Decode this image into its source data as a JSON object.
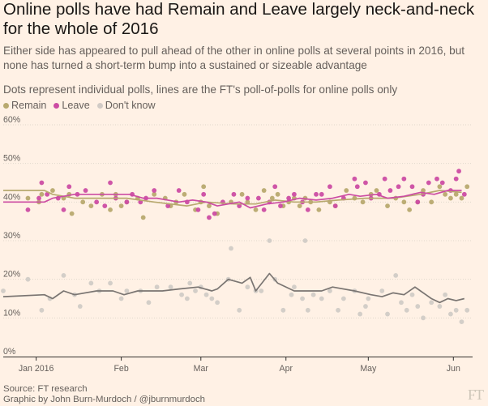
{
  "title": "Online polls have had Remain and Leave largely neck-and-neck for the whole of 2016",
  "subtitle": "Either side has appeared to pull ahead of the other in online polls at several points in 2016, but none has turned a short-term bump into a sustained or sizeable advantage",
  "caption": "Dots represent individual polls, lines are the FT's poll-of-polls for online polls only",
  "source": "Source: FT research",
  "credit": "Graphic by John Burn-Murdoch / @jburnmurdoch",
  "logo": "FT",
  "colors": {
    "remain": "#b8a96f",
    "leave": "#cc4ca3",
    "dont_know": "#d1cbc6",
    "dk_line": "#7a7572",
    "grid": "#e0d6cb",
    "axis": "#33302e"
  },
  "chart_data": {
    "type": "scatter",
    "title": "",
    "xlabel": "",
    "ylabel": "",
    "ylim": [
      0,
      60
    ],
    "y_ticks": [
      "0%",
      "10%",
      "20%",
      "30%",
      "40%",
      "50%",
      "60%"
    ],
    "y_tick_values": [
      0,
      10,
      20,
      30,
      40,
      50,
      60
    ],
    "x_ticks": [
      "Jan 2016",
      "Feb",
      "Mar",
      "Apr",
      "May",
      "Jun"
    ],
    "x_tick_values": [
      0,
      31,
      60,
      91,
      121,
      152
    ],
    "xlim": [
      -12,
      159
    ],
    "grid": true,
    "legend": "top-left",
    "series": [
      {
        "name": "Remain",
        "key": "remain",
        "line": [
          [
            -12,
            43
          ],
          [
            3,
            43
          ],
          [
            6,
            42
          ],
          [
            14,
            41
          ],
          [
            25,
            41
          ],
          [
            33,
            41
          ],
          [
            43,
            40
          ],
          [
            55,
            39
          ],
          [
            62,
            40
          ],
          [
            72,
            39.5
          ],
          [
            80,
            39.5
          ],
          [
            87,
            40.5
          ],
          [
            94,
            40
          ],
          [
            102,
            40
          ],
          [
            110,
            40.5
          ],
          [
            120,
            41
          ],
          [
            130,
            41
          ],
          [
            140,
            42
          ],
          [
            147,
            43
          ],
          [
            155,
            42.5
          ]
        ],
        "points": [
          [
            -3,
            41
          ],
          [
            1,
            40
          ],
          [
            2,
            42
          ],
          [
            6,
            43
          ],
          [
            10,
            41
          ],
          [
            12,
            42
          ],
          [
            13,
            37
          ],
          [
            17,
            40
          ],
          [
            20,
            39
          ],
          [
            24,
            42
          ],
          [
            27,
            38
          ],
          [
            29,
            42
          ],
          [
            31,
            39
          ],
          [
            33,
            40
          ],
          [
            37,
            41
          ],
          [
            39,
            36
          ],
          [
            43,
            42
          ],
          [
            47,
            41
          ],
          [
            49,
            39
          ],
          [
            51,
            40
          ],
          [
            54,
            42
          ],
          [
            58,
            38
          ],
          [
            60,
            40
          ],
          [
            61,
            44
          ],
          [
            63,
            39
          ],
          [
            66,
            37
          ],
          [
            71,
            40
          ],
          [
            75,
            42
          ],
          [
            77,
            40
          ],
          [
            80,
            38
          ],
          [
            83,
            43
          ],
          [
            86,
            41
          ],
          [
            88,
            42
          ],
          [
            90,
            39
          ],
          [
            92,
            40
          ],
          [
            94,
            41
          ],
          [
            96,
            39
          ],
          [
            98,
            41
          ],
          [
            100,
            40
          ],
          [
            103,
            38
          ],
          [
            107,
            40
          ],
          [
            109,
            39
          ],
          [
            113,
            43
          ],
          [
            116,
            41
          ],
          [
            119,
            40
          ],
          [
            122,
            42
          ],
          [
            124,
            43
          ],
          [
            128,
            39
          ],
          [
            131,
            41
          ],
          [
            134,
            40
          ],
          [
            136,
            38
          ],
          [
            139,
            40
          ],
          [
            141,
            43
          ],
          [
            144,
            40
          ],
          [
            147,
            44
          ],
          [
            149,
            42
          ],
          [
            151,
            41
          ],
          [
            153,
            42
          ],
          [
            155,
            41
          ],
          [
            157,
            44
          ]
        ]
      },
      {
        "name": "Leave",
        "key": "leave",
        "line": [
          [
            -12,
            40
          ],
          [
            3,
            40
          ],
          [
            6,
            41
          ],
          [
            14,
            42
          ],
          [
            25,
            42
          ],
          [
            34,
            42
          ],
          [
            39,
            41
          ],
          [
            44,
            41
          ],
          [
            52,
            40
          ],
          [
            57,
            40.5
          ],
          [
            62,
            40
          ],
          [
            66,
            39
          ],
          [
            74,
            40
          ],
          [
            78,
            38.5
          ],
          [
            84,
            39.5
          ],
          [
            90,
            40
          ],
          [
            96,
            41
          ],
          [
            102,
            40.5
          ],
          [
            108,
            41
          ],
          [
            114,
            42
          ],
          [
            118,
            41.5
          ],
          [
            124,
            42
          ],
          [
            128,
            41
          ],
          [
            134,
            41.5
          ],
          [
            140,
            42.5
          ],
          [
            145,
            42
          ],
          [
            150,
            43
          ],
          [
            155,
            43
          ]
        ],
        "points": [
          [
            -3,
            38
          ],
          [
            1,
            41
          ],
          [
            2,
            45
          ],
          [
            4,
            42
          ],
          [
            8,
            41
          ],
          [
            10,
            38
          ],
          [
            12,
            44
          ],
          [
            15,
            42
          ],
          [
            18,
            43
          ],
          [
            22,
            40
          ],
          [
            25,
            39
          ],
          [
            27,
            45
          ],
          [
            29,
            41
          ],
          [
            33,
            40
          ],
          [
            35,
            42
          ],
          [
            38,
            40
          ],
          [
            40,
            41
          ],
          [
            43,
            43
          ],
          [
            48,
            39
          ],
          [
            52,
            43
          ],
          [
            55,
            40
          ],
          [
            59,
            38
          ],
          [
            61,
            42
          ],
          [
            63,
            36
          ],
          [
            65,
            37
          ],
          [
            68,
            40
          ],
          [
            72,
            42
          ],
          [
            74,
            39
          ],
          [
            77,
            41
          ],
          [
            81,
            41
          ],
          [
            83,
            38
          ],
          [
            85,
            40
          ],
          [
            87,
            44
          ],
          [
            89,
            39
          ],
          [
            92,
            41
          ],
          [
            94,
            42
          ],
          [
            97,
            40
          ],
          [
            99,
            38
          ],
          [
            102,
            42
          ],
          [
            104,
            42
          ],
          [
            107,
            44
          ],
          [
            109,
            39
          ],
          [
            112,
            41
          ],
          [
            116,
            46
          ],
          [
            117,
            44
          ],
          [
            120,
            45
          ],
          [
            122,
            41
          ],
          [
            125,
            42
          ],
          [
            127,
            46
          ],
          [
            129,
            43
          ],
          [
            132,
            44
          ],
          [
            134,
            46
          ],
          [
            137,
            44
          ],
          [
            139,
            40
          ],
          [
            141,
            42
          ],
          [
            143,
            45
          ],
          [
            146,
            46
          ],
          [
            148,
            45
          ],
          [
            151,
            43
          ],
          [
            153,
            46
          ],
          [
            154,
            48
          ],
          [
            156,
            42
          ]
        ]
      },
      {
        "name": "Don't know",
        "key": "dont_know",
        "line": [
          [
            -12,
            15.5
          ],
          [
            3,
            16
          ],
          [
            6,
            15
          ],
          [
            10,
            17
          ],
          [
            14,
            16
          ],
          [
            22,
            17
          ],
          [
            28,
            17
          ],
          [
            32,
            16
          ],
          [
            37,
            17
          ],
          [
            46,
            17
          ],
          [
            52,
            17.5
          ],
          [
            59,
            18
          ],
          [
            64,
            17
          ],
          [
            66,
            17.5
          ],
          [
            70,
            20
          ],
          [
            75,
            19
          ],
          [
            78,
            20.5
          ],
          [
            80,
            17
          ],
          [
            85,
            21.5
          ],
          [
            88,
            19
          ],
          [
            94,
            17
          ],
          [
            100,
            17
          ],
          [
            104,
            17
          ],
          [
            108,
            18
          ],
          [
            116,
            17
          ],
          [
            122,
            16
          ],
          [
            126,
            15.5
          ],
          [
            130,
            16.5
          ],
          [
            134,
            16
          ],
          [
            138,
            18
          ],
          [
            140,
            17
          ],
          [
            142,
            16
          ],
          [
            144,
            15
          ],
          [
            147,
            14
          ],
          [
            150,
            15
          ],
          [
            153,
            14.5
          ],
          [
            156,
            15
          ]
        ],
        "points": [
          [
            -12,
            17
          ],
          [
            -3,
            20
          ],
          [
            2,
            12
          ],
          [
            5,
            15
          ],
          [
            10,
            21
          ],
          [
            14,
            16
          ],
          [
            16,
            13
          ],
          [
            20,
            19
          ],
          [
            23,
            17
          ],
          [
            27,
            19
          ],
          [
            31,
            15
          ],
          [
            33,
            17
          ],
          [
            38,
            17
          ],
          [
            41,
            14
          ],
          [
            44,
            18
          ],
          [
            49,
            18
          ],
          [
            53,
            16
          ],
          [
            55,
            15
          ],
          [
            56,
            19
          ],
          [
            58,
            17
          ],
          [
            60,
            18
          ],
          [
            62,
            16
          ],
          [
            64,
            15
          ],
          [
            66,
            14
          ],
          [
            70,
            20
          ],
          [
            71,
            28
          ],
          [
            74,
            12
          ],
          [
            77,
            18
          ],
          [
            80,
            17
          ],
          [
            82,
            17
          ],
          [
            85,
            30
          ],
          [
            87,
            20
          ],
          [
            90,
            12
          ],
          [
            93,
            16
          ],
          [
            94,
            18
          ],
          [
            97,
            15
          ],
          [
            98,
            30
          ],
          [
            99,
            12
          ],
          [
            101,
            16
          ],
          [
            104,
            15
          ],
          [
            107,
            17
          ],
          [
            110,
            12
          ],
          [
            112,
            15
          ],
          [
            116,
            17
          ],
          [
            118,
            11
          ],
          [
            120,
            13
          ],
          [
            121,
            15
          ],
          [
            126,
            17
          ],
          [
            128,
            11
          ],
          [
            131,
            21
          ],
          [
            133,
            14
          ],
          [
            135,
            12
          ],
          [
            137,
            16
          ],
          [
            139,
            13
          ],
          [
            141,
            10
          ],
          [
            144,
            14
          ],
          [
            147,
            13
          ],
          [
            149,
            16
          ],
          [
            151,
            11
          ],
          [
            153,
            12
          ],
          [
            155,
            9
          ],
          [
            157,
            12
          ]
        ]
      }
    ]
  }
}
